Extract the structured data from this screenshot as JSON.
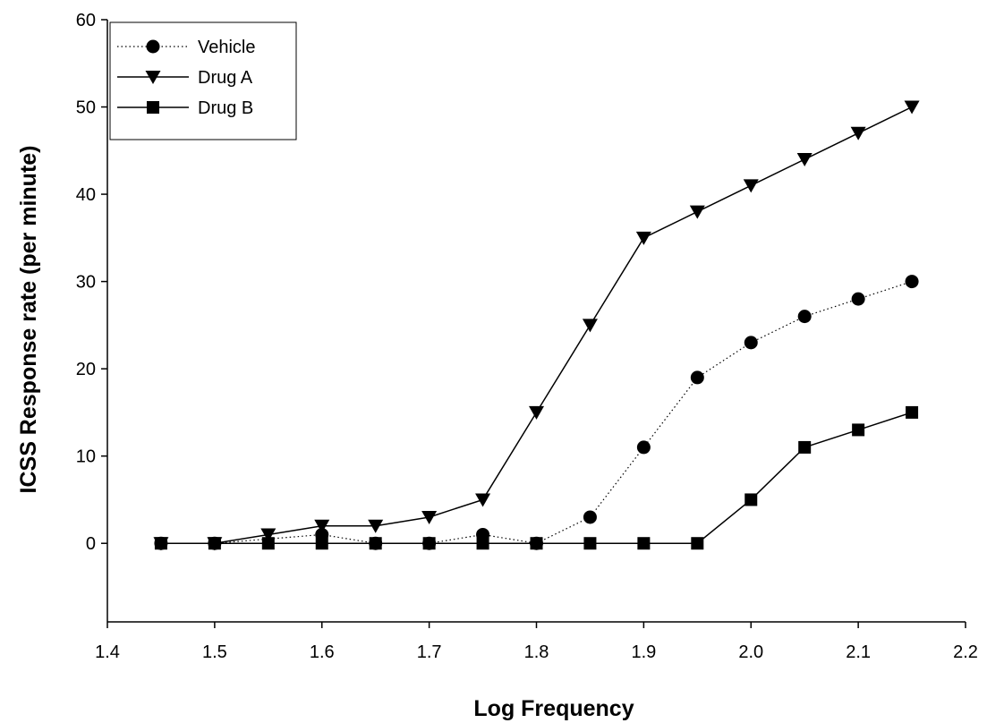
{
  "chart_data": {
    "type": "line",
    "title": "",
    "xlabel": "Log Frequency",
    "ylabel": "ICSS Response rate (per minute)",
    "xlim": [
      1.4,
      2.2
    ],
    "ylim": [
      -9,
      60
    ],
    "xticks": [
      1.4,
      1.5,
      1.6,
      1.7,
      1.8,
      1.9,
      2.0,
      2.1,
      2.2
    ],
    "xtick_labels": [
      "1.4",
      "1.5",
      "1.6",
      "1.7",
      "1.8",
      "1.9",
      "2.0",
      "2.1",
      "2.2"
    ],
    "yticks": [
      0,
      10,
      20,
      30,
      40,
      50,
      60
    ],
    "ytick_labels": [
      "0",
      "10",
      "20",
      "30",
      "40",
      "50",
      "60"
    ],
    "grid": false,
    "legend_position": "top-left",
    "x": [
      1.45,
      1.5,
      1.55,
      1.6,
      1.65,
      1.7,
      1.75,
      1.8,
      1.85,
      1.9,
      1.95,
      2.0,
      2.05,
      2.1,
      2.15
    ],
    "series": [
      {
        "name": "Vehicle",
        "marker": "circle",
        "line_style": "dotted",
        "x": [
          1.45,
          1.5,
          1.6,
          1.65,
          1.7,
          1.75,
          1.8,
          1.85,
          1.9,
          1.95,
          2.0,
          2.05,
          2.1,
          2.15
        ],
        "values": [
          0,
          0,
          1,
          0,
          0,
          1,
          0,
          3,
          11,
          19,
          23,
          26,
          28,
          30
        ]
      },
      {
        "name": "Drug A",
        "marker": "triangle-down",
        "line_style": "solid",
        "x": [
          1.45,
          1.5,
          1.55,
          1.6,
          1.65,
          1.7,
          1.75,
          1.8,
          1.85,
          1.9,
          1.95,
          2.0,
          2.05,
          2.1,
          2.15
        ],
        "values": [
          0,
          0,
          1,
          2,
          2,
          3,
          5,
          15,
          25,
          35,
          38,
          41,
          44,
          47,
          50
        ]
      },
      {
        "name": "Drug B",
        "marker": "square",
        "line_style": "solid",
        "x": [
          1.45,
          1.5,
          1.55,
          1.6,
          1.65,
          1.7,
          1.75,
          1.8,
          1.85,
          1.9,
          1.95,
          2.0,
          2.05,
          2.1,
          2.15
        ],
        "values": [
          0,
          0,
          0,
          0,
          0,
          0,
          0,
          0,
          0,
          0,
          0,
          5,
          11,
          13,
          15
        ]
      }
    ]
  }
}
